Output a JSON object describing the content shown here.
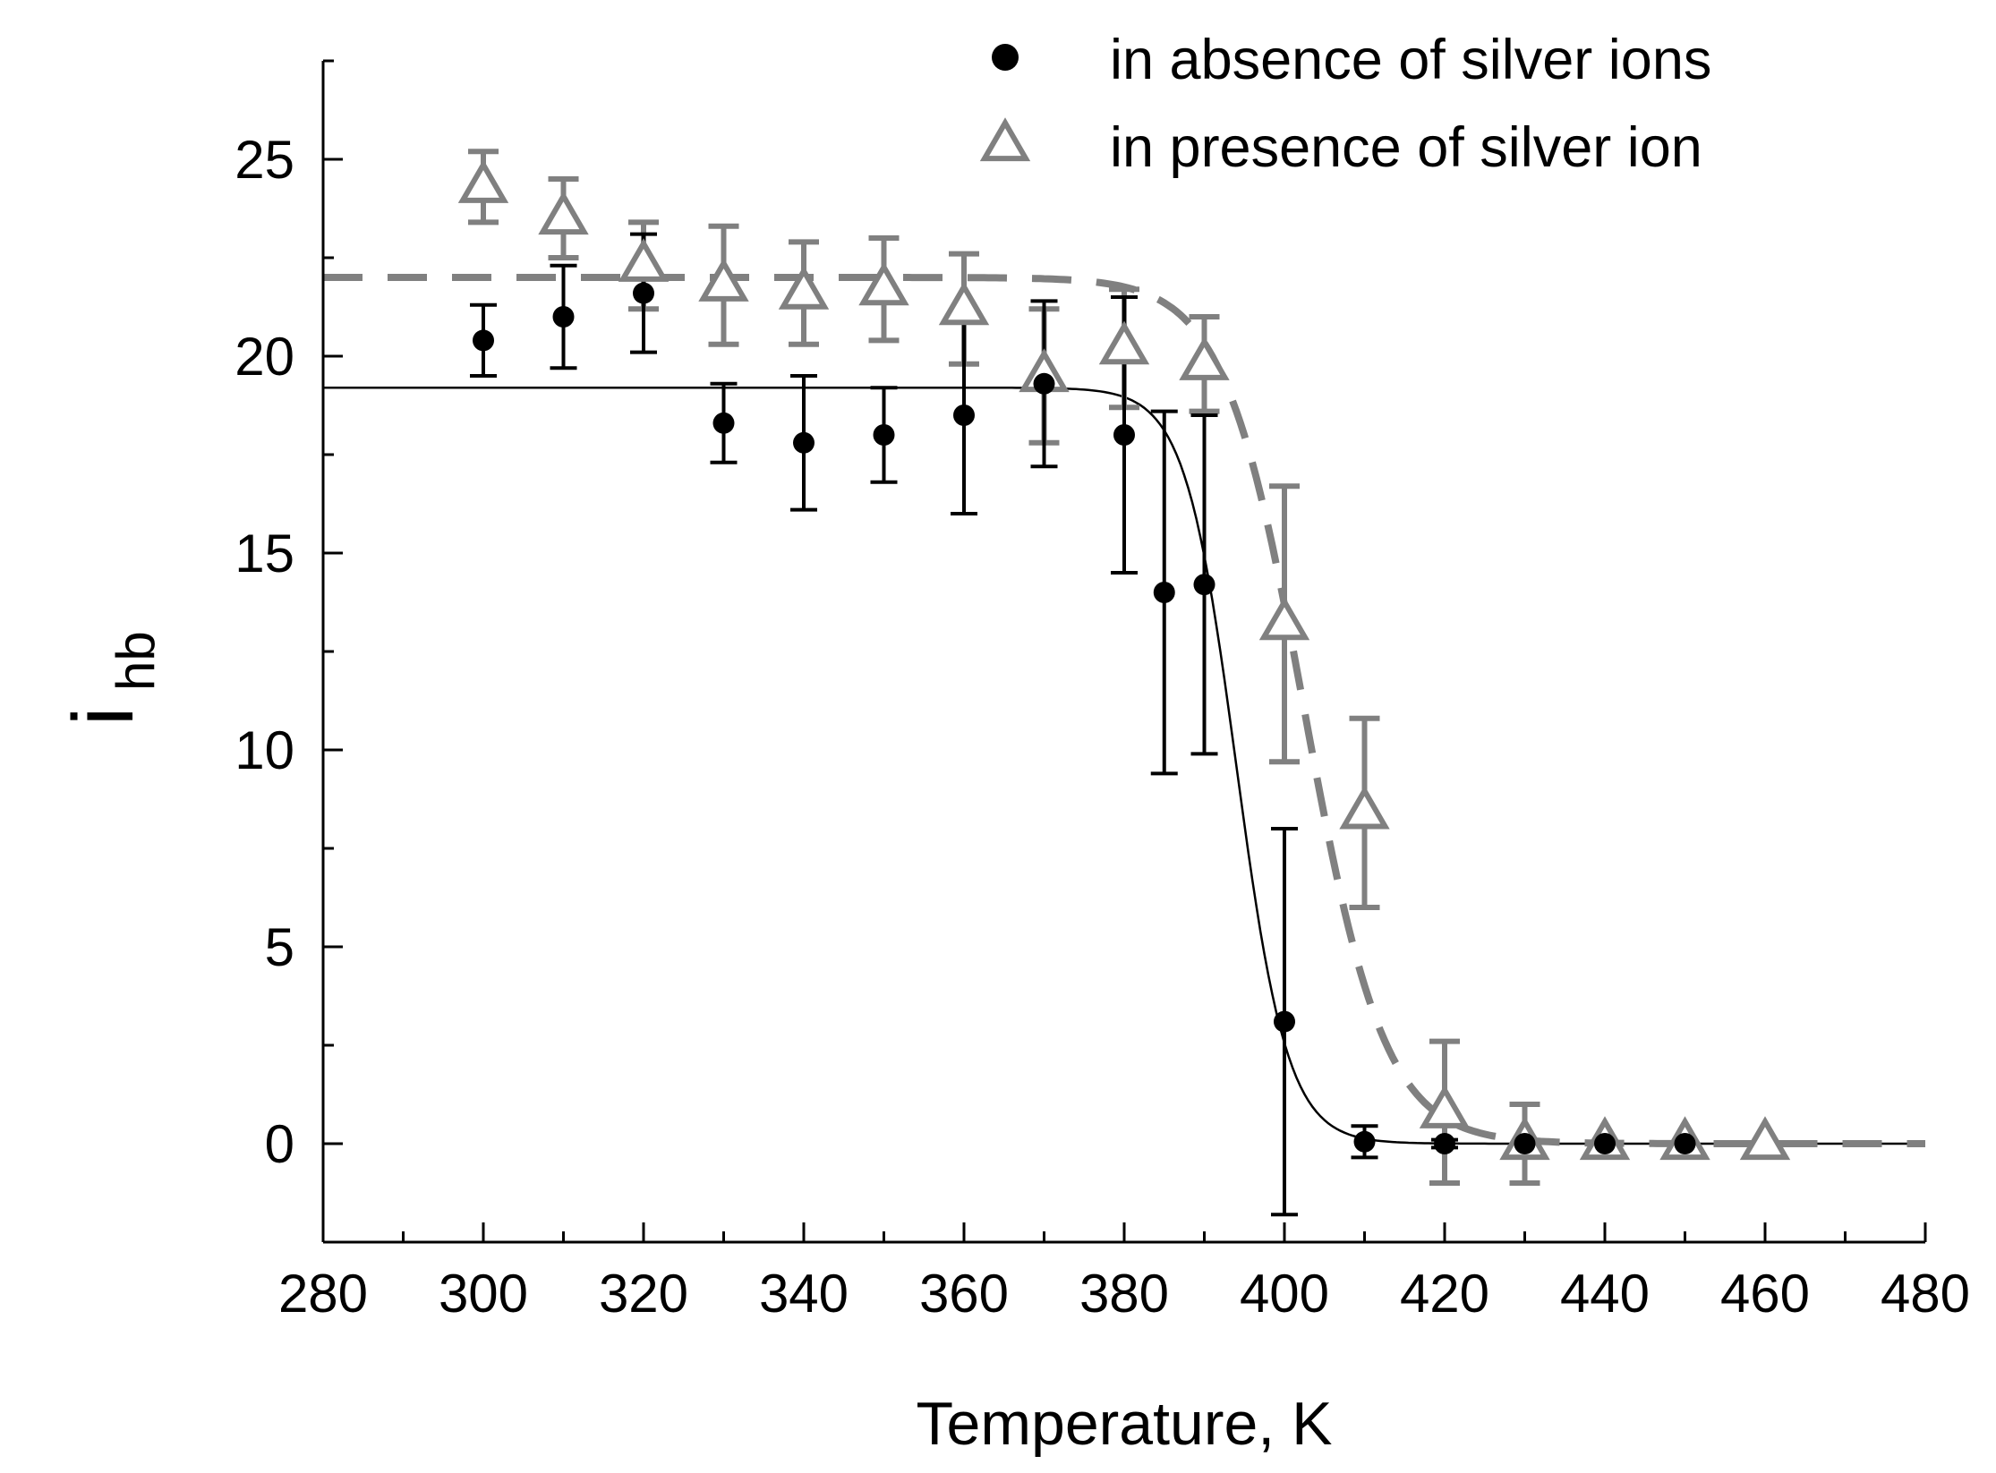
{
  "chart_data": {
    "type": "scatter",
    "title": "",
    "xlabel": "Temperature, K",
    "ylabel": "i",
    "ylabel_subscript": "hb",
    "xlim": [
      280,
      480
    ],
    "ylim": [
      -2.5,
      27.5
    ],
    "x_ticks": [
      280,
      300,
      320,
      340,
      360,
      380,
      400,
      420,
      440,
      460,
      480
    ],
    "x_tick_labels": [
      "280",
      "300",
      "320",
      "340",
      "360",
      "380",
      "400",
      "420",
      "440",
      "460",
      "480"
    ],
    "y_ticks": [
      0,
      5,
      10,
      15,
      20,
      25
    ],
    "y_tick_labels": [
      "0",
      "5",
      "10",
      "15",
      "20",
      "25"
    ],
    "grid": false,
    "legend_position": "top-right",
    "series": [
      {
        "name": "in absence of silver ions",
        "marker": "circle",
        "color": "#000000",
        "x": [
          300,
          310,
          320,
          330,
          340,
          350,
          360,
          370,
          380,
          385,
          390,
          400,
          410,
          420,
          430,
          440,
          450
        ],
        "y": [
          20.4,
          21.0,
          21.6,
          18.3,
          17.8,
          18.0,
          18.5,
          19.3,
          18.0,
          14.0,
          14.2,
          3.1,
          0.05,
          0.0,
          0.0,
          0.0,
          0.0
        ],
        "error": [
          0.9,
          1.3,
          1.5,
          1.0,
          1.7,
          1.2,
          2.5,
          2.1,
          3.5,
          4.6,
          4.3,
          4.9,
          0.4,
          0.1,
          0.0,
          0.0,
          0.0
        ],
        "fit": {
          "style": "solid",
          "top": 19.2,
          "bottom": 0.0,
          "x0": 394.0,
          "dx": 3.2
        }
      },
      {
        "name": "in presence of silver ion",
        "marker": "triangle",
        "color": "#808080",
        "x": [
          300,
          310,
          320,
          330,
          340,
          350,
          360,
          370,
          380,
          390,
          400,
          410,
          420,
          430,
          440,
          450,
          460
        ],
        "y": [
          24.3,
          23.5,
          22.3,
          21.8,
          21.6,
          21.7,
          21.2,
          19.5,
          20.2,
          19.8,
          13.2,
          8.4,
          0.8,
          0.0,
          0.0,
          0.0,
          0.0
        ],
        "error": [
          0.9,
          1.0,
          1.1,
          1.5,
          1.3,
          1.3,
          1.4,
          1.7,
          1.5,
          1.2,
          3.5,
          2.4,
          1.8,
          1.0,
          0.0,
          0.0,
          0.0
        ],
        "fit": {
          "style": "dashed",
          "top": 22.0,
          "bottom": 0.0,
          "x0": 402.5,
          "dx": 5.0
        }
      }
    ]
  }
}
